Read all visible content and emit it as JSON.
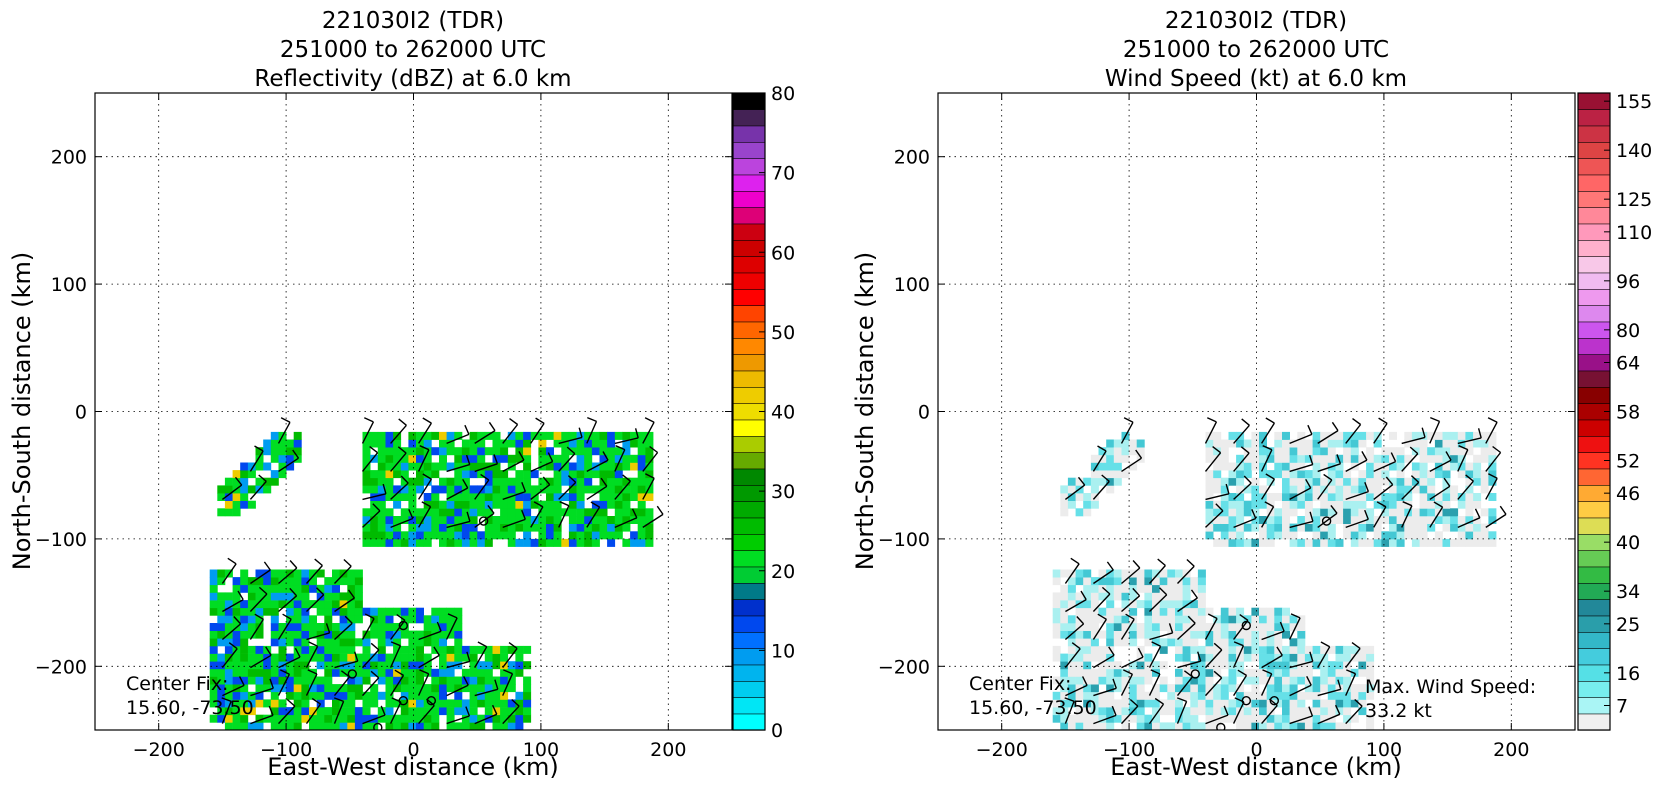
{
  "chart_data": [
    {
      "type": "heatmap",
      "title_lines": [
        "221030I2 (TDR)",
        "251000 to 262000 UTC",
        "Reflectivity (dBZ) at 6.0 km"
      ],
      "xlabel": "East-West distance (km)",
      "ylabel": "North-South distance (km)",
      "xlim": [
        -250,
        250
      ],
      "ylim": [
        -250,
        250
      ],
      "xticks": [
        -200,
        -100,
        0,
        100,
        200
      ],
      "yticks": [
        -200,
        -100,
        0,
        100,
        200
      ],
      "grid": true,
      "annotation": {
        "label": "Center Fix:",
        "value": "15.60, -73.50"
      },
      "colorbar": {
        "label_values": [
          0,
          10,
          20,
          30,
          40,
          50,
          60,
          70,
          80
        ],
        "range": [
          0,
          80
        ],
        "colors": [
          "#00ffff",
          "#00e6f5",
          "#00cdf0",
          "#00b4ee",
          "#009cf0",
          "#0070ff",
          "#0048ee",
          "#0030cc",
          "#007a88",
          "#00cc33",
          "#00dd22",
          "#00cc00",
          "#00bb00",
          "#00aa00",
          "#009900",
          "#008800",
          "#66aa00",
          "#aacc00",
          "#ffff00",
          "#eedd00",
          "#eecc00",
          "#eebb00",
          "#ee9900",
          "#ff8800",
          "#ff6600",
          "#ff4400",
          "#ff0000",
          "#ee0000",
          "#dd0000",
          "#cc0000",
          "#cc0011",
          "#dd0077",
          "#ee00cc",
          "#dd22ee",
          "#bb44dd",
          "#9944cc",
          "#7733aa",
          "#442255",
          "#000000"
        ]
      },
      "layers": [
        {
          "name": "reflectivity",
          "colors": [
            "#0048ee",
            "#009cf0",
            "#00dd22",
            "#00bb00",
            "#00aa00",
            "#eecc00"
          ]
        }
      ]
    },
    {
      "type": "heatmap",
      "title_lines": [
        "221030I2 (TDR)",
        "251000 to 262000 UTC",
        "Wind Speed (kt) at 6.0 km"
      ],
      "xlabel": "East-West distance (km)",
      "ylabel": "North-South distance (km)",
      "xlim": [
        -250,
        250
      ],
      "ylim": [
        -250,
        250
      ],
      "xticks": [
        -200,
        -100,
        0,
        100,
        200
      ],
      "yticks": [
        -200,
        -100,
        0,
        100,
        200
      ],
      "grid": true,
      "annotation": {
        "label": "Center Fix:",
        "value": "15.60, -73.50"
      },
      "max_wind": {
        "label": "Max. Wind Speed:",
        "value": "33.2 kt"
      },
      "colorbar": {
        "label_values": [
          "7",
          "16",
          "25",
          "34",
          "40",
          "46",
          "52",
          "58",
          "64",
          "80",
          "96",
          "110",
          "125",
          "140",
          "155"
        ],
        "colors": [
          "#f0f0f0",
          "#aaf5f5",
          "#77eeee",
          "#55e0e6",
          "#44ccdd",
          "#33b8c8",
          "#2a9eaa",
          "#228899",
          "#22aa55",
          "#33bb44",
          "#66cc55",
          "#99dd66",
          "#dddd55",
          "#ffcc44",
          "#ffaa33",
          "#ff6633",
          "#ff3322",
          "#ee1111",
          "#cc0000",
          "#aa0000",
          "#880000",
          "#771133",
          "#991188",
          "#bb33cc",
          "#cc55ee",
          "#dd88ee",
          "#ee99ee",
          "#f0bbf0",
          "#f8c8e8",
          "#ffb0cc",
          "#ff99bb",
          "#ff8899",
          "#ff7777",
          "#ff6666",
          "#ee5555",
          "#dd4444",
          "#cc3344",
          "#bb2244",
          "#991133"
        ]
      },
      "layers": [
        {
          "name": "wind",
          "colors": [
            "#ececec",
            "#aaf0f0",
            "#66e0e8",
            "#44c8d4",
            "#2aa0ae"
          ]
        }
      ]
    }
  ]
}
